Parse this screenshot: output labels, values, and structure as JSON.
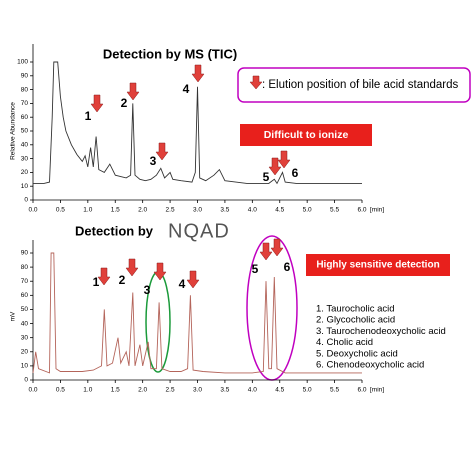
{
  "chart_data": [
    {
      "type": "line",
      "title": "Detection by MS (TIC)",
      "ylabel": "Relative Abundance",
      "xlabel": "[min]",
      "xlim": [
        0,
        6
      ],
      "xticks": [
        {
          "value": 0,
          "label": "0.0"
        },
        {
          "value": 0.5,
          "label": "0.5"
        },
        {
          "value": 1,
          "label": "1.0"
        },
        {
          "value": 1.5,
          "label": "1.5"
        },
        {
          "value": 2,
          "label": "2.0"
        },
        {
          "value": 2.5,
          "label": "2.5"
        },
        {
          "value": 3,
          "label": "3.0"
        },
        {
          "value": 3.5,
          "label": "3.5"
        },
        {
          "value": 4,
          "label": "4.0"
        },
        {
          "value": 4.5,
          "label": "4.5"
        },
        {
          "value": 5,
          "label": "5.0"
        },
        {
          "value": 5.5,
          "label": "5.5"
        },
        {
          "value": 6,
          "label": "6.0"
        }
      ],
      "ylim": [
        0,
        100
      ],
      "yticks": [
        0,
        10,
        20,
        30,
        40,
        50,
        60,
        70,
        80,
        90,
        100
      ],
      "series": [
        {
          "color": "#333333",
          "x": [
            0,
            0.2,
            0.3,
            0.35,
            0.38,
            0.45,
            0.5,
            0.55,
            0.6,
            0.7,
            0.8,
            0.9,
            0.95,
            1.0,
            1.05,
            1.1,
            1.15,
            1.2,
            1.3,
            1.4,
            1.5,
            1.6,
            1.7,
            1.78,
            1.82,
            1.86,
            1.95,
            2.05,
            2.15,
            2.25,
            2.33,
            2.4,
            2.5,
            2.55,
            2.7,
            2.9,
            2.96,
            3.0,
            3.04,
            3.15,
            3.3,
            3.4,
            3.5,
            3.7,
            3.9,
            4.1,
            4.3,
            4.4,
            4.45,
            4.55,
            4.6,
            4.8,
            5.0,
            5.5,
            6.0
          ],
          "values": [
            12,
            12,
            13,
            60,
            100,
            100,
            75,
            60,
            50,
            40,
            33,
            28,
            32,
            24,
            38,
            24,
            46,
            22,
            20,
            26,
            18,
            17,
            16,
            18,
            70,
            18,
            15,
            14,
            15,
            18,
            23,
            16,
            20,
            15,
            14,
            13,
            20,
            82,
            16,
            14,
            18,
            22,
            14,
            13,
            12,
            12,
            12,
            15,
            12,
            20,
            13,
            12,
            12,
            12,
            12
          ]
        }
      ],
      "legend_text": ": Elution position of bile acid standards",
      "callout": "Difficult to ionize",
      "peak_labels": [
        "1",
        "2",
        "3",
        "4",
        "5",
        "6"
      ]
    },
    {
      "type": "line",
      "title": "Detection by",
      "logo": "NQAD",
      "ylabel": "mV",
      "xlabel": "[min]",
      "xlim": [
        0,
        6
      ],
      "xticks": [
        {
          "value": 0,
          "label": "0.0"
        },
        {
          "value": 0.5,
          "label": "0.5"
        },
        {
          "value": 1,
          "label": "1.0"
        },
        {
          "value": 1.5,
          "label": "1.5"
        },
        {
          "value": 2,
          "label": "2.0"
        },
        {
          "value": 2.5,
          "label": "2.5"
        },
        {
          "value": 3,
          "label": "3.0"
        },
        {
          "value": 3.5,
          "label": "3.5"
        },
        {
          "value": 4,
          "label": "4.0"
        },
        {
          "value": 4.5,
          "label": "4.5"
        },
        {
          "value": 5,
          "label": "5.0"
        },
        {
          "value": 5.5,
          "label": "5.5"
        },
        {
          "value": 6,
          "label": "6.0"
        }
      ],
      "ylim": [
        0,
        90
      ],
      "yticks": [
        0,
        10,
        20,
        30,
        40,
        50,
        60,
        70,
        80,
        90
      ],
      "series": [
        {
          "color": "#b4645a",
          "x": [
            0,
            0.05,
            0.1,
            0.3,
            0.33,
            0.38,
            0.42,
            0.5,
            0.7,
            0.9,
            1.1,
            1.25,
            1.3,
            1.35,
            1.45,
            1.55,
            1.6,
            1.7,
            1.75,
            1.82,
            1.86,
            1.95,
            2.0,
            2.1,
            2.15,
            2.25,
            2.3,
            2.35,
            2.5,
            2.7,
            2.82,
            2.87,
            2.92,
            3.1,
            3.5,
            4.0,
            4.2,
            4.25,
            4.3,
            4.35,
            4.4,
            4.45,
            4.6,
            5.0,
            5.5,
            6.0
          ],
          "values": [
            5,
            20,
            8,
            5,
            90,
            90,
            8,
            6,
            6,
            6,
            7,
            10,
            50,
            10,
            12,
            30,
            12,
            20,
            10,
            62,
            10,
            25,
            10,
            27,
            8,
            8,
            55,
            8,
            6,
            6,
            8,
            60,
            7,
            6,
            5,
            5,
            6,
            70,
            8,
            8,
            73,
            8,
            5,
            5,
            5,
            5
          ]
        }
      ],
      "callout": "Highly sensitive detection",
      "peak_labels": [
        "1",
        "2",
        "3",
        "4",
        "5",
        "6"
      ],
      "compounds": [
        "1. Taurocholic acid",
        "2. Glycocholic acid",
        "3. Taurochenodeoxycholic acid",
        "4. Cholic acid",
        "5. Deoxycholic acid",
        "6. Chenodeoxycholic acid"
      ]
    }
  ]
}
